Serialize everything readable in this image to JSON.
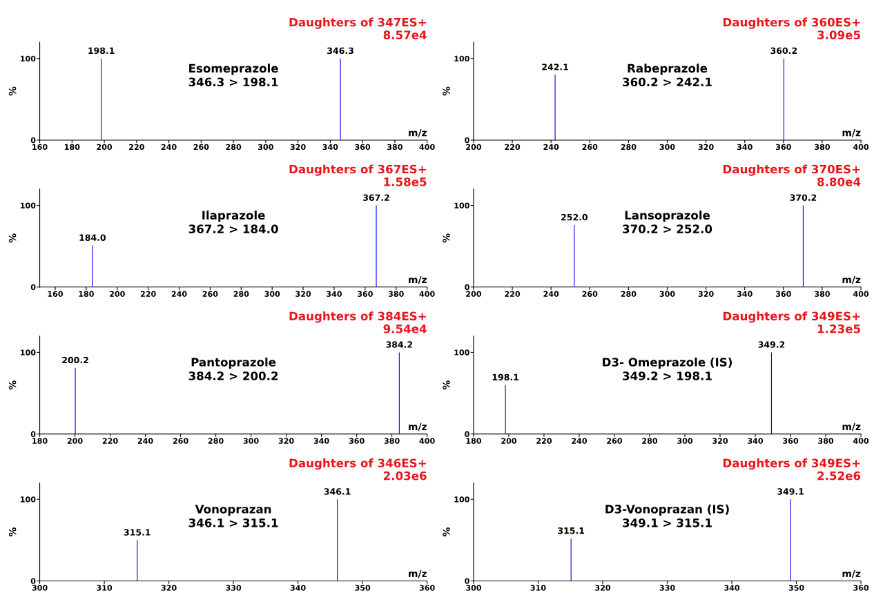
{
  "chart_data": [
    {
      "type": "bar",
      "title": "Daughters of 347ES+",
      "subtitle": "8.57e4",
      "annotations": [
        "Esomeprazole",
        "346.3 > 198.1",
        {
          "text": "198.1",
          "x": 198.1,
          "y": 100
        },
        {
          "text": "346.3",
          "x": 346.3,
          "y": 100
        }
      ],
      "x": [
        198.1,
        346.3
      ],
      "values": [
        100,
        100
      ],
      "color": "#0000ff",
      "xlabel": "m/z",
      "ylabel": "%",
      "xlim": [
        160,
        400
      ],
      "xticks": [
        160,
        180,
        200,
        220,
        240,
        260,
        280,
        300,
        320,
        340,
        360,
        380,
        400
      ],
      "ylim": [
        0,
        120
      ],
      "yticks": [
        0,
        100
      ]
    },
    {
      "type": "bar",
      "title": "Daughters of 360ES+",
      "subtitle": "3.09e5",
      "annotations": [
        "Rabeprazole",
        "360.2 > 242.1",
        {
          "text": "242.1",
          "x": 242.1,
          "y": 80
        },
        {
          "text": "360.2",
          "x": 360.2,
          "y": 100
        }
      ],
      "x": [
        242.1,
        360.2
      ],
      "values": [
        80,
        100
      ],
      "color": "#0000ff",
      "xlabel": "m/z",
      "ylabel": "%",
      "xlim": [
        200,
        400
      ],
      "xticks": [
        200,
        220,
        240,
        260,
        280,
        300,
        320,
        340,
        360,
        380,
        400
      ],
      "ylim": [
        0,
        120
      ],
      "yticks": [
        0,
        100
      ]
    },
    {
      "type": "bar",
      "title": "Daughters of 367ES+",
      "subtitle": "1.58e5",
      "annotations": [
        "Ilaprazole",
        "367.2 > 184.0",
        {
          "text": "184.0",
          "x": 184.0,
          "y": 51
        },
        {
          "text": "367.2",
          "x": 367.2,
          "y": 100
        }
      ],
      "x": [
        184.0,
        367.2
      ],
      "values": [
        51,
        100
      ],
      "color": "#0000ff",
      "xlabel": "m/z",
      "ylabel": "%",
      "xlim": [
        150,
        400
      ],
      "xticks": [
        160,
        180,
        200,
        220,
        240,
        260,
        280,
        300,
        320,
        340,
        360,
        380,
        400
      ],
      "ylim": [
        0,
        120
      ],
      "yticks": [
        0,
        100
      ]
    },
    {
      "type": "bar",
      "title": "Daughters of 370ES+",
      "subtitle": "8.80e4",
      "annotations": [
        "Lansoprazole",
        "370.2 > 252.0",
        {
          "text": "252.0",
          "x": 252.0,
          "y": 76
        },
        {
          "text": "370.2",
          "x": 370.2,
          "y": 100
        }
      ],
      "x": [
        252.0,
        370.2
      ],
      "values": [
        76,
        100
      ],
      "color": "#0000ff",
      "xlabel": "m/z",
      "ylabel": "%",
      "xlim": [
        200,
        400
      ],
      "xticks": [
        200,
        220,
        240,
        260,
        280,
        300,
        320,
        340,
        360,
        380,
        400
      ],
      "ylim": [
        0,
        120
      ],
      "yticks": [
        0,
        100
      ]
    },
    {
      "type": "bar",
      "title": "Daughters of 384ES+",
      "subtitle": "9.54e4",
      "annotations": [
        "Pantoprazole",
        "384.2 > 200.2",
        {
          "text": "200.2",
          "x": 200.2,
          "y": 81
        },
        {
          "text": "384.2",
          "x": 384.2,
          "y": 100
        }
      ],
      "x": [
        200.2,
        384.2
      ],
      "values": [
        81,
        100
      ],
      "color": "#0000ff",
      "xlabel": "m/z",
      "ylabel": "%",
      "xlim": [
        180,
        400
      ],
      "xticks": [
        180,
        200,
        220,
        240,
        260,
        280,
        300,
        320,
        340,
        360,
        380,
        400
      ],
      "ylim": [
        0,
        120
      ],
      "yticks": [
        0,
        100
      ]
    },
    {
      "type": "bar",
      "title": "Daughters of 349ES+",
      "subtitle": "1.23e5",
      "annotations": [
        "D3- Omeprazole (IS)",
        "349.2 > 198.1",
        {
          "text": "198.1",
          "x": 198.1,
          "y": 60
        },
        {
          "text": "349.2",
          "x": 349.2,
          "y": 100
        }
      ],
      "x": [
        198.1,
        349.2
      ],
      "values": [
        60,
        100
      ],
      "color": "#0000ff",
      "xlabel": "m/z",
      "ylabel": "%",
      "xlim": [
        180,
        400
      ],
      "xticks": [
        180,
        200,
        220,
        240,
        260,
        280,
        300,
        320,
        340,
        360,
        380,
        400
      ],
      "ylim": [
        0,
        120
      ],
      "yticks": [
        0,
        100
      ]
    },
    {
      "type": "bar",
      "title": "Daughters of 346ES+",
      "subtitle": "2.03e6",
      "annotations": [
        "Vonoprazan",
        "346.1 > 315.1",
        {
          "text": "315.1",
          "x": 315.1,
          "y": 50
        },
        {
          "text": "346.1",
          "x": 346.1,
          "y": 100
        }
      ],
      "x": [
        315.1,
        346.1
      ],
      "values": [
        50,
        100
      ],
      "color": "#0000ff",
      "xlabel": "m/z",
      "ylabel": "%",
      "xlim": [
        300,
        360
      ],
      "xticks": [
        300,
        310,
        320,
        330,
        340,
        350,
        360
      ],
      "ylim": [
        0,
        120
      ],
      "yticks": [
        0,
        100
      ]
    },
    {
      "type": "bar",
      "title": "Daughters of 349ES+",
      "subtitle": "2.52e6",
      "annotations": [
        "D3-Vonoprazan (IS)",
        "349.1 > 315.1",
        {
          "text": "315.1",
          "x": 315.1,
          "y": 52
        },
        {
          "text": "349.1",
          "x": 349.1,
          "y": 100
        }
      ],
      "x": [
        315.1,
        349.1
      ],
      "values": [
        52,
        100
      ],
      "color": "#0000ff",
      "xlabel": "m/z",
      "ylabel": "%",
      "xlim": [
        300,
        360
      ],
      "xticks": [
        300,
        310,
        320,
        330,
        340,
        350,
        360
      ],
      "ylim": [
        0,
        120
      ],
      "yticks": [
        0,
        100
      ]
    }
  ]
}
